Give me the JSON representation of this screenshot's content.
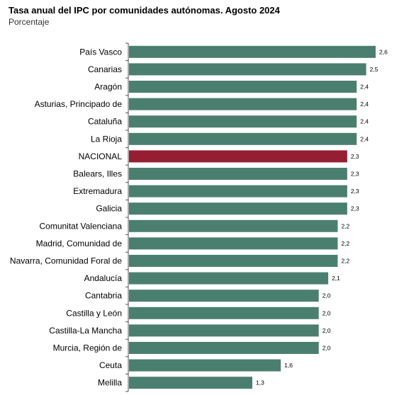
{
  "header": {
    "title": "Tasa anual del IPC por comunidades autónomas. Agosto 2024",
    "subtitle": "Porcentaje"
  },
  "colors": {
    "bar": "#4a7f70",
    "highlight": "#961e32",
    "axis": "#555555",
    "text": "#000000"
  },
  "chart_data": {
    "type": "bar",
    "orientation": "horizontal",
    "title": "Tasa anual del IPC por comunidades autónomas. Agosto 2024",
    "subtitle": "Porcentaje",
    "categories": [
      "País Vasco",
      "Canarias",
      "Aragón",
      "Asturias, Principado de",
      "Cataluña",
      "La Rioja",
      "NACIONAL",
      "Balears, Illes",
      "Extremadura",
      "Galicia",
      "Comunitat Valenciana",
      "Madrid, Comunidad de",
      "Navarra, Comunidad Foral de",
      "Andalucía",
      "Cantabria",
      "Castilla y León",
      "Castilla-La Mancha",
      "Murcia, Región de",
      "Ceuta",
      "Melilla"
    ],
    "values": [
      2.6,
      2.5,
      2.4,
      2.4,
      2.4,
      2.4,
      2.3,
      2.3,
      2.3,
      2.3,
      2.2,
      2.2,
      2.2,
      2.1,
      2.0,
      2.0,
      2.0,
      2.0,
      1.6,
      1.3
    ],
    "value_labels": [
      "2,6",
      "2,5",
      "2,4",
      "2,4",
      "2,4",
      "2,4",
      "2,3",
      "2,3",
      "2,3",
      "2,3",
      "2,2",
      "2,2",
      "2,2",
      "2,1",
      "2,0",
      "2,0",
      "2,0",
      "2,0",
      "1,6",
      "1,3"
    ],
    "highlight_category": "NACIONAL",
    "xlim": [
      0,
      2.6
    ],
    "grid": false,
    "legend": "none"
  }
}
